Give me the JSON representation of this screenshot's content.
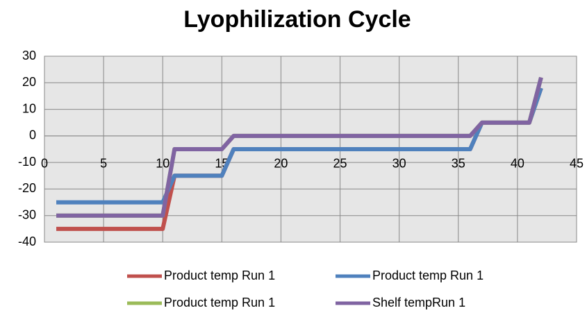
{
  "chart_data": {
    "type": "line",
    "title": "Lyophilization Cycle",
    "x": [
      1,
      10,
      11,
      15,
      16,
      36,
      37,
      41,
      42
    ],
    "series": [
      {
        "name": "Product temp Run 1",
        "color": "#c0504d",
        "values": [
          -35,
          -35,
          -15,
          -15,
          -5,
          -5,
          5,
          5,
          18
        ]
      },
      {
        "name": "Product temp Run 1",
        "color": "#4f81bd",
        "values": [
          -25,
          -25,
          -15,
          -15,
          -5,
          -5,
          5,
          5,
          18
        ]
      },
      {
        "name": "Product temp Run 1",
        "color": "#9bbb59",
        "values": [
          -30,
          -30,
          -5,
          -5,
          0,
          0,
          5,
          5,
          22
        ]
      },
      {
        "name": "Shelf tempRun 1",
        "color": "#8064a2",
        "values": [
          -30,
          -30,
          -5,
          -5,
          0,
          0,
          5,
          5,
          22
        ]
      }
    ],
    "xlim": [
      0,
      45
    ],
    "xticks": [
      0,
      5,
      10,
      15,
      20,
      25,
      30,
      35,
      40,
      45
    ],
    "ylim": [
      -40,
      30
    ],
    "yticks": [
      -40,
      -30,
      -20,
      -10,
      0,
      10,
      20,
      30
    ],
    "grid": true,
    "legend": "bottom"
  }
}
